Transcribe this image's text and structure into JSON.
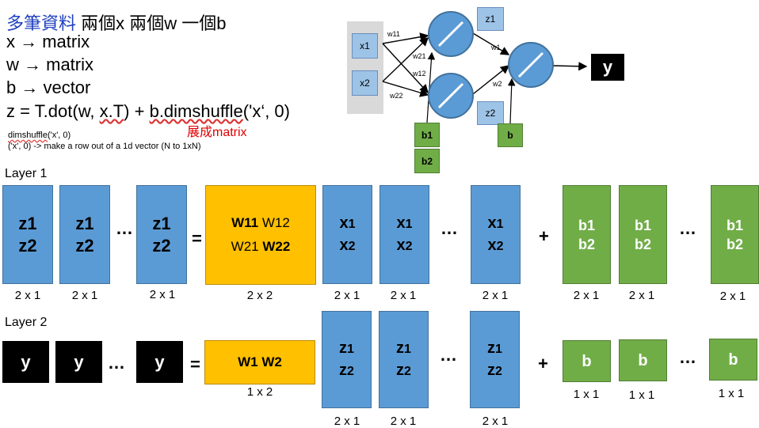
{
  "top_text": {
    "title_accent": "多筆資料",
    "title_rest": " 兩個x 兩個w 一個b",
    "line_x": "x → matrix",
    "line_w": "w → matrix",
    "line_b": "b → vector",
    "line_z_pre": "z = T.dot(w, ",
    "line_z_xt": "x.T",
    "line_z_mid": ") + ",
    "line_z_dim": "b.dimshuffle",
    "line_z_post": "('x‘, 0)",
    "red_label": "展成matrix",
    "note_1_fn": "dimshuffle",
    "note_1_rest": "('x', 0)",
    "note_2": "('x', 0) -> make a row out of a 1d vector (N to 1xN)"
  },
  "network": {
    "x1": "x1",
    "x2": "x2",
    "z1": "z1",
    "z2": "z2",
    "y": "y",
    "b1": "b1",
    "b2": "b2",
    "b": "b",
    "w11": "w11",
    "w21": "w21",
    "w12": "w12",
    "w22": "w22",
    "w1": "w1",
    "w2": "w2"
  },
  "layer1": {
    "label": "Layer 1",
    "z1": "z1",
    "z2": "z2",
    "x1_main": "x",
    "x1_sub": "1",
    "x2_main": "x",
    "x2_sub": "2",
    "b1": "b1",
    "b2": "b2",
    "w11": "W11",
    "w12": "W12",
    "w21": "W21",
    "w22": "W22",
    "dots": "…",
    "equals": "=",
    "plus": "+",
    "dim_2x1": "2 x 1",
    "dim_2x2": "2 x 2"
  },
  "layer2": {
    "label": "Layer 2",
    "y": "y",
    "z1_main": "z",
    "z1_sub": "1",
    "z2_main": "z",
    "z2_sub": "2",
    "w1": "W1",
    "w2": "W2",
    "b": "b",
    "dots": "…",
    "equals": "=",
    "plus": "+",
    "dim_1x2": "1 x 2",
    "dim_2x1": "2 x 1",
    "dim_1x1": "1 x 1"
  },
  "colors": {
    "blue": "#5b9bd5",
    "green": "#70ad47",
    "orange": "#ffc000",
    "light_blue": "#9dc3e6",
    "red": "#e00000",
    "accent": "#1f3fbf"
  }
}
